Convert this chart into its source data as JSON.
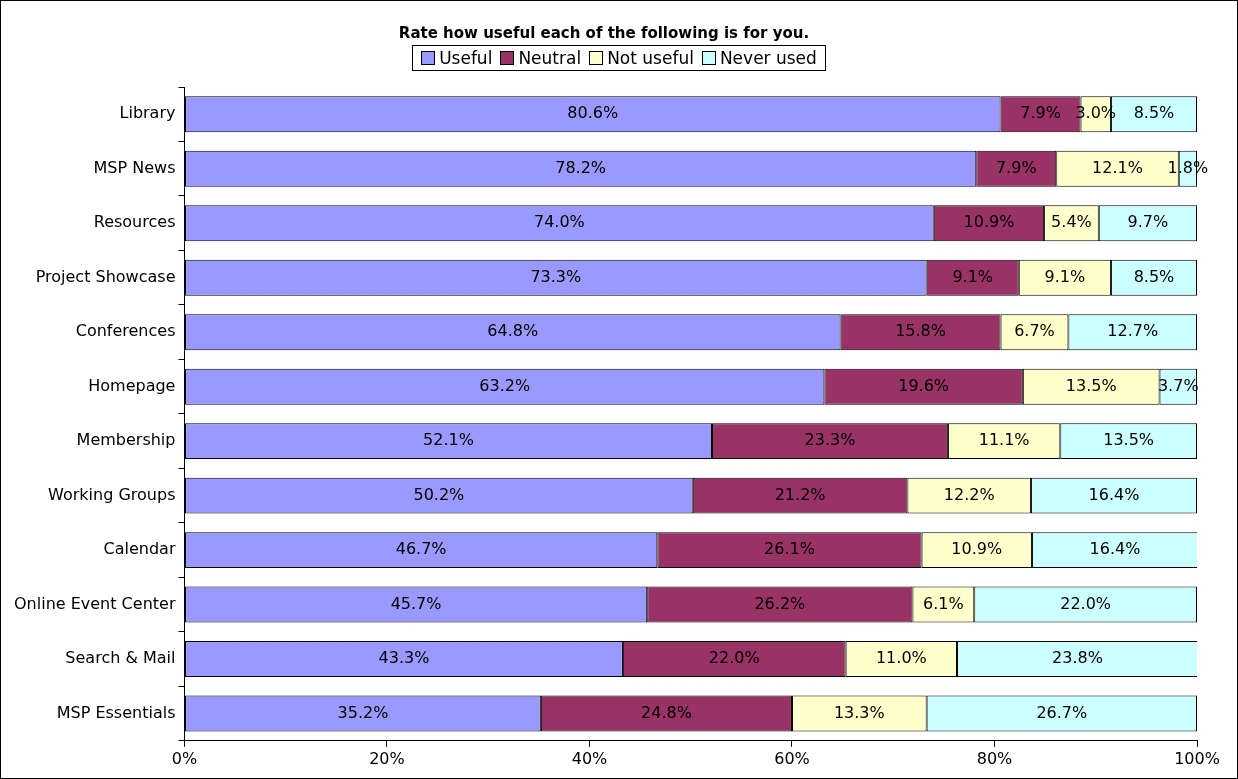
{
  "chart_data": {
    "type": "bar",
    "orientation": "horizontal",
    "stacked": true,
    "title": "Rate how useful each of the following is for you.",
    "categories": [
      "Library",
      "MSP News",
      "Resources",
      "Project Showcase",
      "Conferences",
      "Homepage",
      "Membership",
      "Working Groups",
      "Calendar",
      "Online Event Center",
      "Search & Mail",
      "MSP Essentials"
    ],
    "series": [
      {
        "name": "Useful",
        "color": "#9999ff",
        "values": [
          80.6,
          78.2,
          74.0,
          73.3,
          64.8,
          63.2,
          52.1,
          50.2,
          46.7,
          45.7,
          43.3,
          35.2
        ],
        "value_labels": [
          "80.6%",
          "78.2%",
          "74.0%",
          "73.3%",
          "64.8%",
          "63.2%",
          "52.1%",
          "50.2%",
          "46.7%",
          "45.7%",
          "43.3%",
          "35.2%"
        ]
      },
      {
        "name": "Neutral",
        "color": "#993366",
        "values": [
          7.9,
          7.9,
          10.9,
          9.1,
          15.8,
          19.6,
          23.3,
          21.2,
          26.1,
          26.2,
          22.0,
          24.8
        ],
        "value_labels": [
          "7.9%",
          "7.9%",
          "10.9%",
          "9.1%",
          "15.8%",
          "19.6%",
          "23.3%",
          "21.2%",
          "26.1%",
          "26.2%",
          "22.0%",
          "24.8%"
        ]
      },
      {
        "name": "Not useful",
        "color": "#ffffcc",
        "values": [
          3.0,
          12.1,
          5.4,
          9.1,
          6.7,
          13.5,
          11.1,
          12.2,
          10.9,
          6.1,
          11.0,
          13.3
        ],
        "value_labels": [
          "3.0%",
          "12.1%",
          "5.4%",
          "9.1%",
          "6.7%",
          "13.5%",
          "11.1%",
          "12.2%",
          "10.9%",
          "6.1%",
          "11.0%",
          "13.3%"
        ]
      },
      {
        "name": "Never used",
        "color": "#ccffff",
        "values": [
          8.5,
          1.8,
          9.7,
          8.5,
          12.7,
          3.7,
          13.5,
          16.4,
          16.4,
          22.0,
          23.8,
          26.7
        ],
        "value_labels": [
          "8.5%",
          "1.8%",
          "9.7%",
          "8.5%",
          "12.7%",
          "3.7%",
          "13.5%",
          "16.4%",
          "16.4%",
          "22.0%",
          "23.8%",
          "26.7%"
        ]
      }
    ],
    "xlim": [
      0,
      100
    ],
    "xticks": [
      {
        "value": 0,
        "label": "0%"
      },
      {
        "value": 20,
        "label": "20%"
      },
      {
        "value": 40,
        "label": "40%"
      },
      {
        "value": 60,
        "label": "60%"
      },
      {
        "value": 80,
        "label": "80%"
      },
      {
        "value": 100,
        "label": "100%"
      }
    ],
    "grid": false,
    "legend": "top"
  }
}
